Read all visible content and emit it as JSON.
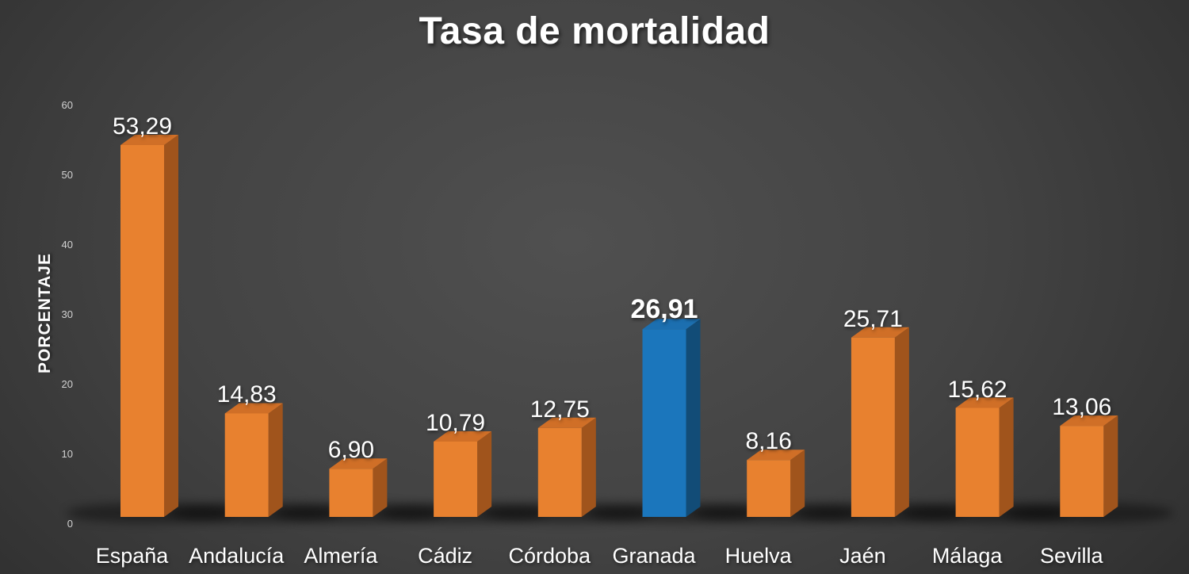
{
  "title": "Tasa de mortalidad",
  "y_axis": {
    "label": "PORCENTAJE",
    "ticks": [
      "0",
      "10",
      "20",
      "30",
      "40",
      "50",
      "60"
    ]
  },
  "chart_data": {
    "type": "bar",
    "title": "Tasa de mortalidad",
    "ylabel": "PORCENTAJE",
    "xlabel": "",
    "ylim": [
      0,
      60
    ],
    "grid": false,
    "legend": false,
    "style": "3d-bars-dark-background",
    "categories": [
      "España",
      "Andalucía",
      "Almería",
      "Cádiz",
      "Córdoba",
      "Granada",
      "Huelva",
      "Jaén",
      "Málaga",
      "Sevilla"
    ],
    "values": [
      53.29,
      14.83,
      6.9,
      10.79,
      12.75,
      26.91,
      8.16,
      25.71,
      15.62,
      13.06
    ],
    "value_labels": [
      "53,29",
      "14,83",
      "6,90",
      "10,79",
      "12,75",
      "26,91",
      "8,16",
      "25,71",
      "15,62",
      "13,06"
    ],
    "highlight_index": 5,
    "colors": {
      "normal": {
        "front": "#E8812F",
        "top": "#D06F27",
        "side": "#A0541C"
      },
      "highlight": {
        "front": "#1B76BC",
        "top": "#1C6FB0",
        "side": "#124C77"
      },
      "text": "#ffffff",
      "tick_text": "#d2d2d2",
      "background_center": "#505050",
      "background_edge": "#262626"
    }
  }
}
